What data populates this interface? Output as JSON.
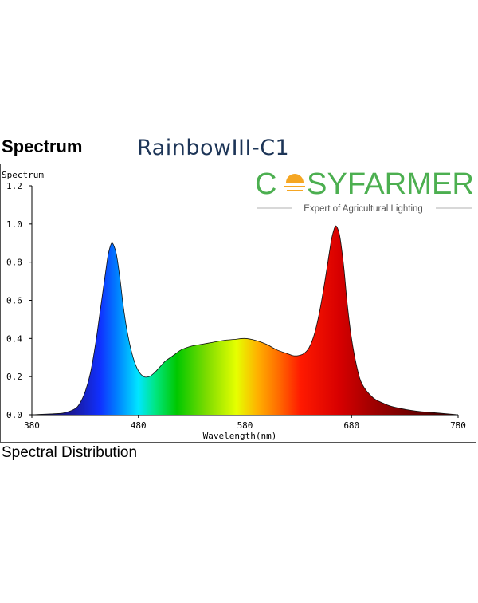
{
  "header": {
    "section_title": "Spectrum",
    "product_name": "RainbowIII-C1"
  },
  "logo": {
    "brand_prefix": "C",
    "brand_suffix": "SYFARMER",
    "tagline": "Expert of Agricultural Lighting",
    "brand_color": "#4caf50",
    "sun_color": "#f5a623"
  },
  "footer": {
    "caption": "Spectral Distribution"
  },
  "chart_data": {
    "type": "area",
    "title": "",
    "ylabel": "Spectrum",
    "xlabel": "Wavelength(nm)",
    "xlim": [
      380,
      780
    ],
    "ylim": [
      0,
      1.2
    ],
    "x_ticks": [
      380,
      480,
      580,
      680,
      780
    ],
    "y_ticks": [
      "0.0",
      "0.2",
      "0.4",
      "0.6",
      "0.8",
      "1.0",
      "1.2"
    ],
    "grid": false,
    "legend": "none",
    "series": [
      {
        "x": [
          380,
          400,
          410,
          420,
          425,
          430,
          435,
          440,
          445,
          450,
          452,
          455,
          458,
          460,
          463,
          466,
          470,
          475,
          480,
          485,
          490,
          495,
          500,
          505,
          510,
          515,
          520,
          530,
          540,
          550,
          560,
          570,
          580,
          590,
          600,
          610,
          620,
          625,
          630,
          635,
          640,
          645,
          650,
          655,
          660,
          662,
          665,
          668,
          670,
          673,
          676,
          680,
          685,
          690,
          700,
          710,
          720,
          740,
          760,
          780
        ],
        "y": [
          0.0,
          0.005,
          0.01,
          0.03,
          0.06,
          0.12,
          0.22,
          0.38,
          0.58,
          0.78,
          0.85,
          0.9,
          0.87,
          0.82,
          0.7,
          0.56,
          0.42,
          0.3,
          0.23,
          0.2,
          0.2,
          0.22,
          0.25,
          0.28,
          0.3,
          0.32,
          0.34,
          0.36,
          0.37,
          0.38,
          0.39,
          0.395,
          0.4,
          0.39,
          0.37,
          0.34,
          0.32,
          0.31,
          0.31,
          0.32,
          0.35,
          0.42,
          0.54,
          0.7,
          0.88,
          0.94,
          0.99,
          0.96,
          0.9,
          0.76,
          0.58,
          0.4,
          0.25,
          0.16,
          0.09,
          0.06,
          0.04,
          0.02,
          0.01,
          0.0
        ]
      }
    ]
  }
}
